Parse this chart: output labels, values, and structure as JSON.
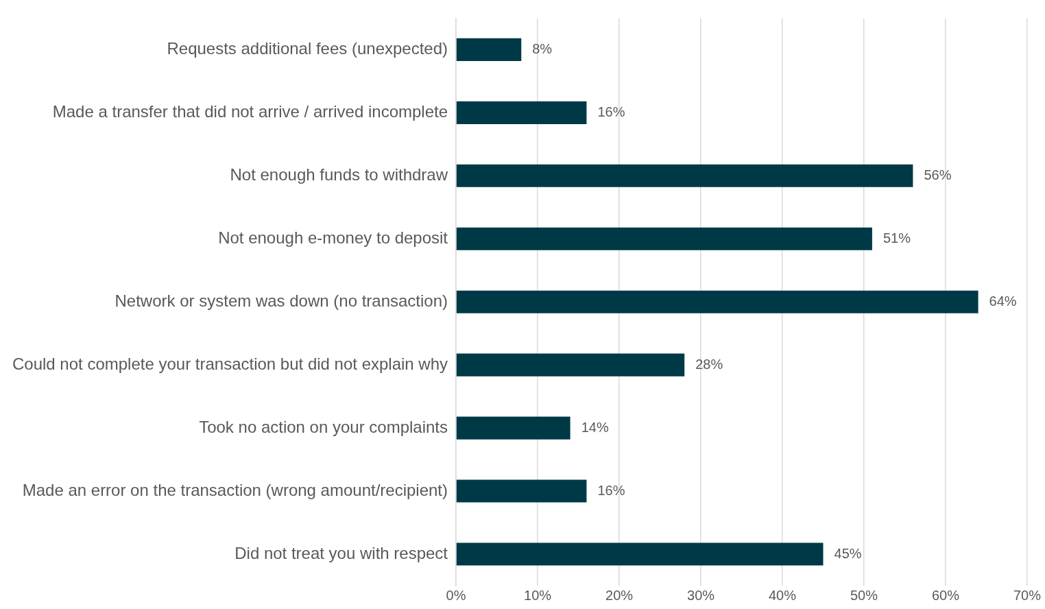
{
  "chart_data": {
    "type": "bar",
    "orientation": "horizontal",
    "categories": [
      "Requests additional fees (unexpected)",
      "Made a transfer that did not arrive / arrived incomplete",
      "Not enough funds to withdraw",
      "Not enough e-money to deposit",
      "Network or system was down (no transaction)",
      "Could not complete your transaction but did not explain why",
      "Took no action on your complaints",
      "Made an error on the transaction (wrong amount/recipient)",
      "Did not treat you with respect"
    ],
    "values": [
      8,
      16,
      56,
      51,
      64,
      28,
      14,
      16,
      45
    ],
    "value_labels": [
      "8%",
      "16%",
      "56%",
      "51%",
      "64%",
      "28%",
      "14%",
      "16%",
      "45%"
    ],
    "color": "#003946",
    "xlim": [
      0,
      70
    ],
    "xticks": [
      {
        "value": 0,
        "label": "0%"
      },
      {
        "value": 10,
        "label": "10%"
      },
      {
        "value": 20,
        "label": "20%"
      },
      {
        "value": 30,
        "label": "30%"
      },
      {
        "value": 40,
        "label": "40%"
      },
      {
        "value": 50,
        "label": "50%"
      },
      {
        "value": 60,
        "label": "60%"
      },
      {
        "value": 70,
        "label": "70%"
      }
    ],
    "grid": "x"
  }
}
